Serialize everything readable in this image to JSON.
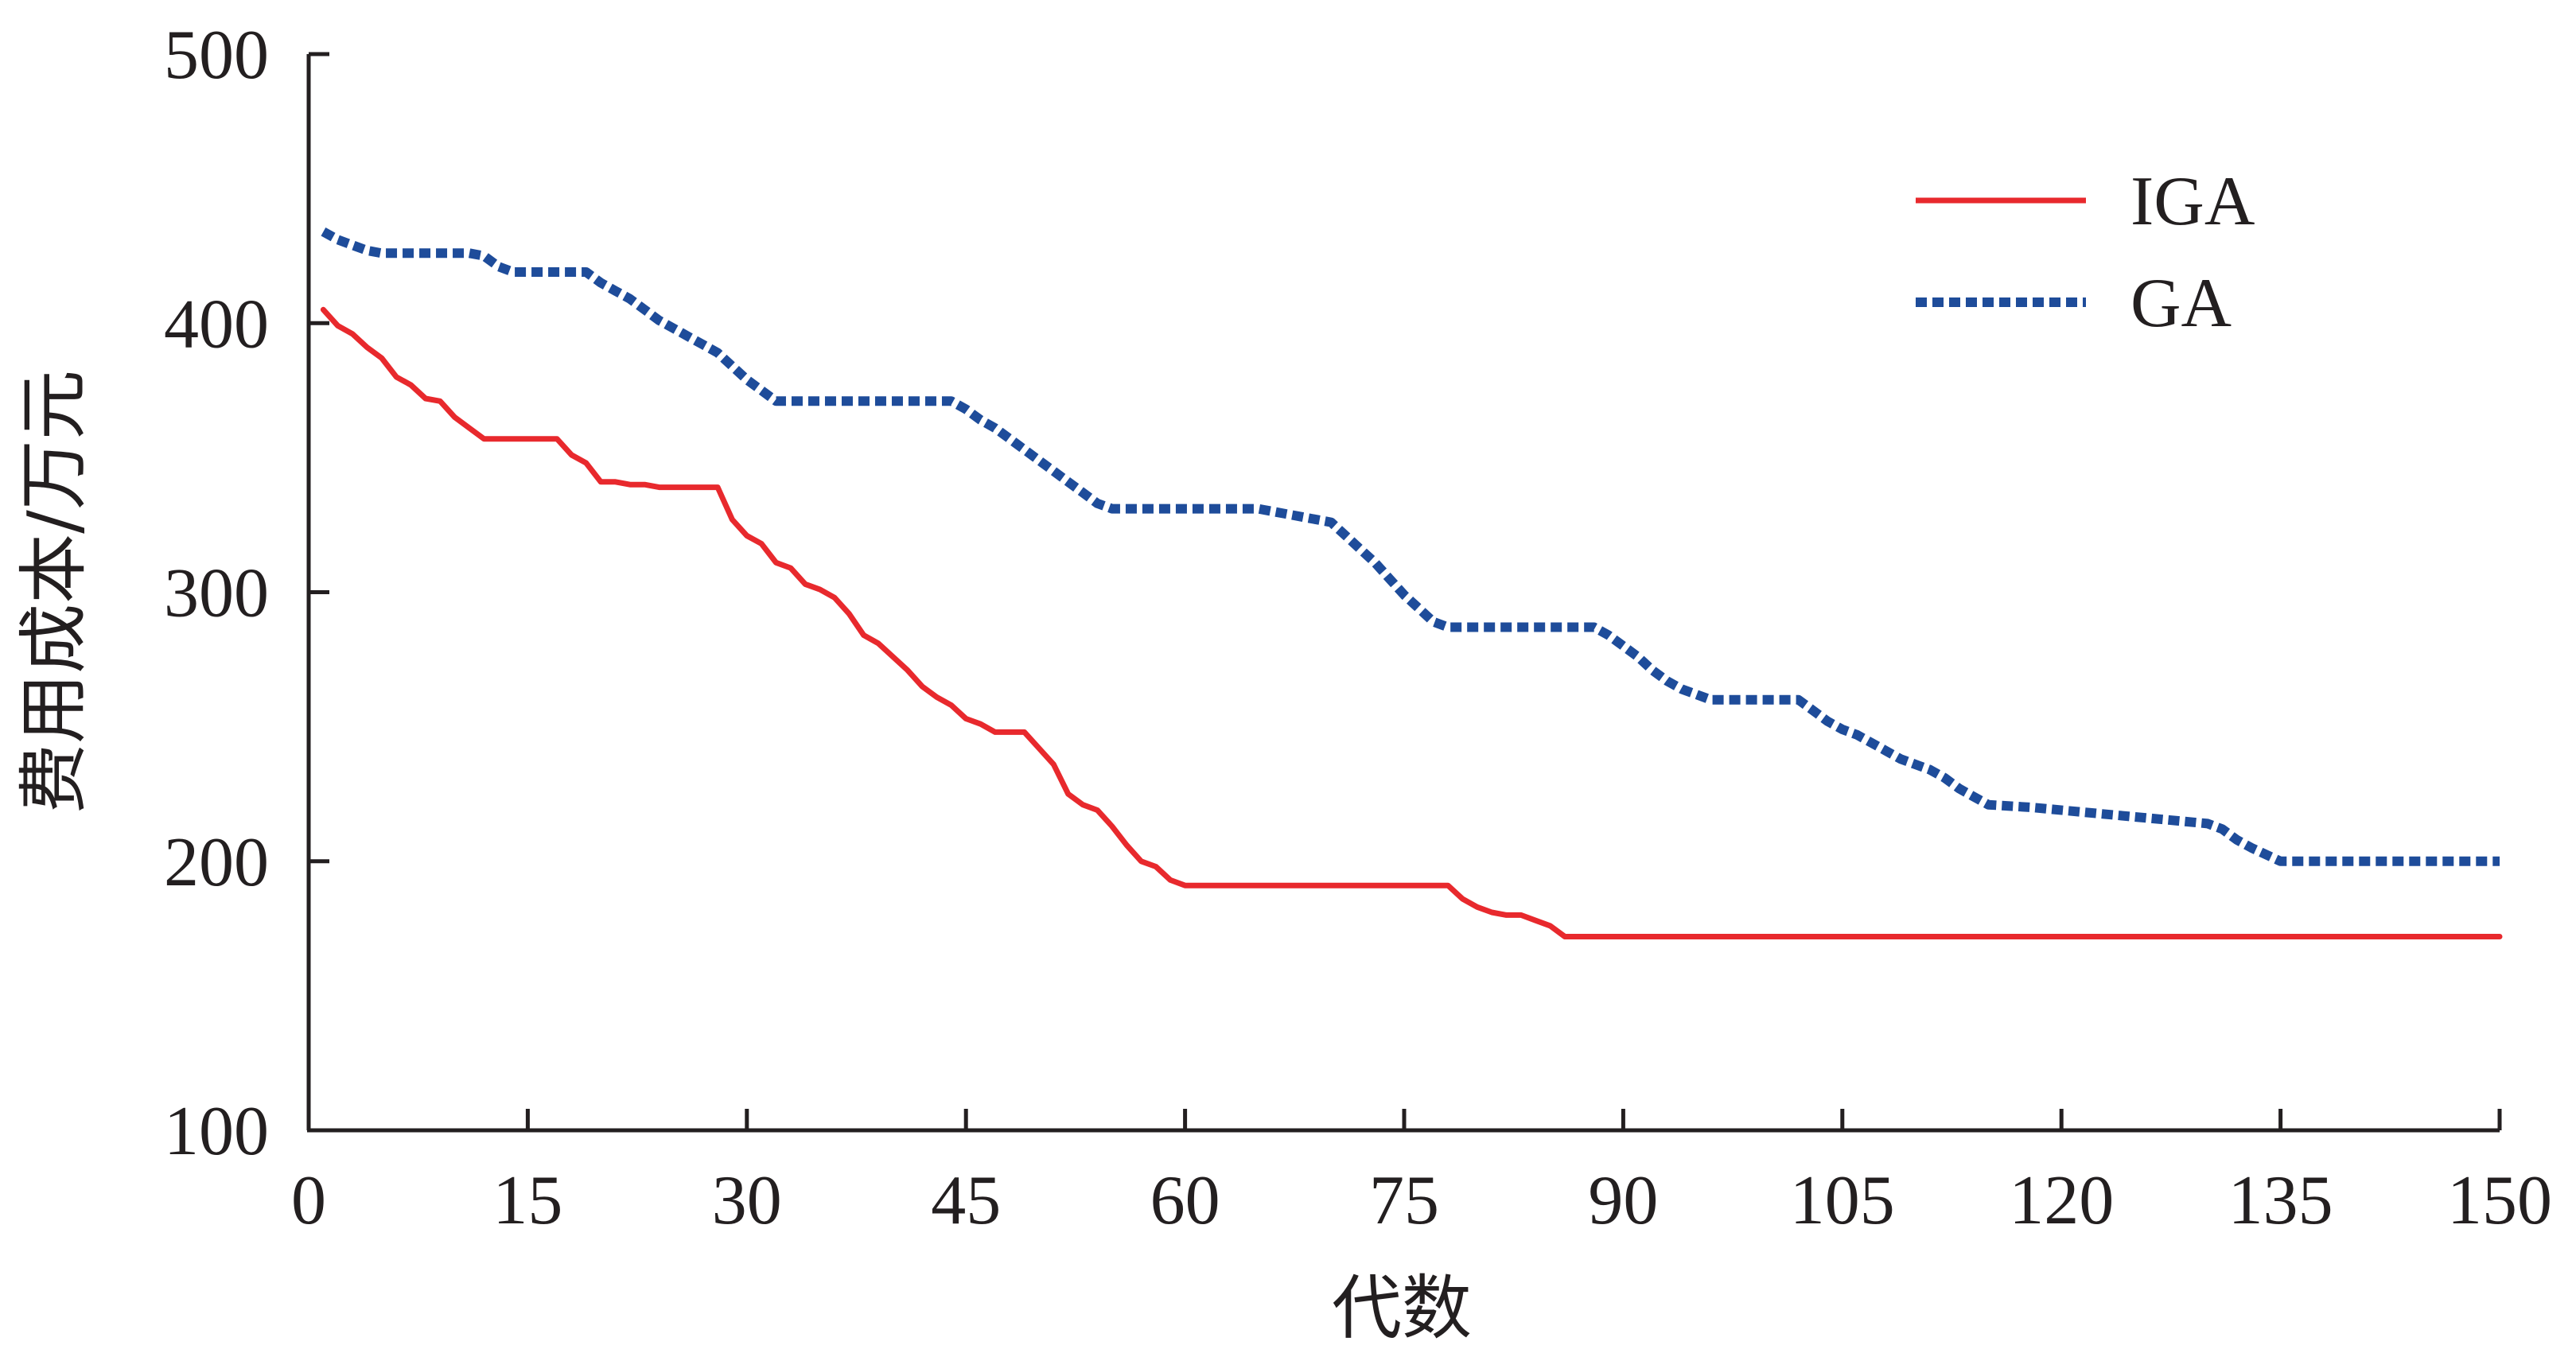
{
  "chart_data": {
    "type": "line",
    "title": "",
    "xlabel": "代数",
    "ylabel": "费用成本/万元",
    "xlim": [
      0,
      150
    ],
    "ylim": [
      100,
      500
    ],
    "xticks": [
      0,
      15,
      30,
      45,
      60,
      75,
      90,
      105,
      120,
      135,
      150
    ],
    "yticks": [
      100,
      200,
      300,
      400,
      500
    ],
    "grid": false,
    "legend_position": "top-right",
    "series": [
      {
        "name": "IGA",
        "color": "#e8292d",
        "style": "solid",
        "x": [
          1,
          2,
          3,
          4,
          5,
          6,
          7,
          8,
          9,
          10,
          11,
          12,
          13,
          14,
          15,
          16,
          17,
          18,
          19,
          20,
          21,
          22,
          23,
          24,
          25,
          26,
          27,
          28,
          29,
          30,
          31,
          32,
          33,
          34,
          35,
          36,
          37,
          38,
          39,
          40,
          41,
          42,
          43,
          44,
          45,
          46,
          47,
          48,
          49,
          50,
          51,
          52,
          53,
          54,
          55,
          56,
          57,
          58,
          59,
          60,
          62,
          65,
          70,
          75,
          78,
          79,
          80,
          81,
          82,
          83,
          84,
          85,
          86,
          90,
          100,
          110,
          120,
          130,
          140,
          150
        ],
        "y": [
          405,
          399,
          396,
          391,
          387,
          380,
          377,
          372,
          371,
          365,
          361,
          357,
          357,
          357,
          357,
          357,
          357,
          351,
          348,
          341,
          341,
          340,
          340,
          339,
          339,
          339,
          339,
          339,
          327,
          321,
          318,
          311,
          309,
          303,
          301,
          298,
          292,
          284,
          281,
          276,
          271,
          265,
          261,
          258,
          253,
          251,
          248,
          248,
          248,
          242,
          236,
          225,
          221,
          219,
          213,
          206,
          200,
          198,
          193,
          191,
          191,
          191,
          191,
          191,
          191,
          186,
          183,
          181,
          180,
          180,
          178,
          176,
          172,
          172,
          172,
          172,
          172,
          172,
          172,
          172
        ]
      },
      {
        "name": "GA",
        "color": "#1e4c9a",
        "style": "dotted",
        "x": [
          1,
          2,
          3,
          4,
          5,
          6,
          8,
          10,
          11,
          12,
          13,
          14,
          16,
          18,
          19,
          20,
          21,
          22,
          23,
          24,
          25,
          26,
          27,
          28,
          29,
          30,
          31,
          32,
          33,
          34,
          35,
          40,
          44,
          45,
          46,
          47,
          48,
          49,
          50,
          51,
          52,
          53,
          54,
          55,
          56,
          60,
          65,
          68,
          70,
          71,
          72,
          73,
          74,
          75,
          76,
          77,
          78,
          80,
          85,
          88,
          89,
          90,
          91,
          92,
          93,
          94,
          95,
          96,
          98,
          102,
          103,
          104,
          105,
          106,
          107,
          108,
          109,
          110,
          111,
          112,
          113,
          114,
          115,
          118,
          122,
          126,
          130,
          131,
          132,
          133,
          135,
          140,
          150
        ],
        "y": [
          434,
          431,
          429,
          427,
          426,
          426,
          426,
          426,
          426,
          425,
          421,
          419,
          419,
          419,
          419,
          415,
          412,
          409,
          405,
          401,
          398,
          395,
          392,
          389,
          384,
          379,
          375,
          371,
          371,
          371,
          371,
          371,
          371,
          368,
          364,
          361,
          357,
          353,
          349,
          345,
          341,
          337,
          333,
          331,
          331,
          331,
          331,
          328,
          326,
          321,
          316,
          311,
          305,
          299,
          294,
          289,
          287,
          287,
          287,
          287,
          284,
          280,
          276,
          271,
          267,
          264,
          262,
          260,
          260,
          260,
          256,
          252,
          249,
          247,
          244,
          241,
          238,
          236,
          234,
          231,
          227,
          224,
          221,
          220,
          218,
          216,
          214,
          212,
          208,
          205,
          200,
          200,
          200
        ]
      }
    ]
  }
}
